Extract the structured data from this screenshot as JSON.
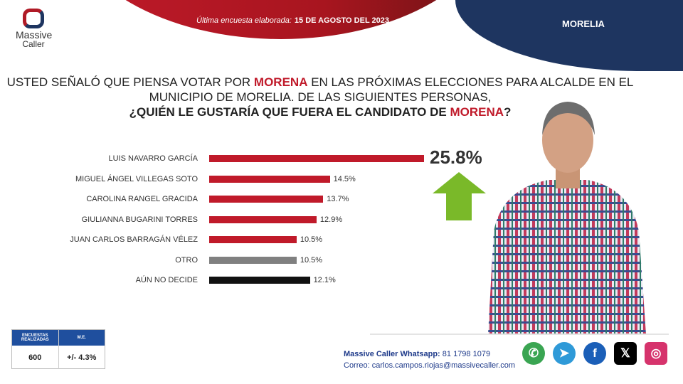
{
  "header": {
    "date_label": "Última encuesta elaborada:",
    "date_value": "15 DE AGOSTO DEL 2023",
    "city": "MORELIA",
    "logo_line1": "Massive",
    "logo_line2": "Caller"
  },
  "question": {
    "line1_pre": "USTED SEÑALÓ QUE PIENSA VOTAR POR ",
    "line1_party": "MORENA",
    "line1_post": " EN LAS PRÓXIMAS ELECCIONES PARA ALCALDE EN EL",
    "line2": "MUNICIPIO DE MORELIA.  DE LAS SIGUIENTES PERSONAS,",
    "line3_pre": "¿QUIÉN LE GUSTARÍA QUE FUERA EL CANDIDATO DE ",
    "line3_party": "MORENA",
    "line3_post": "?"
  },
  "chart_data": {
    "type": "bar",
    "orientation": "horizontal",
    "categories": [
      "LUIS NAVARRO GARCÍA",
      "MIGUEL ÁNGEL VILLEGAS SOTO",
      "CAROLINA RANGEL GRACIDA",
      "GIULIANNA BUGARINI TORRES",
      "JUAN CARLOS BARRAGÁN VÉLEZ",
      "OTRO",
      "AÚN NO DECIDE"
    ],
    "values": [
      25.8,
      14.5,
      13.7,
      12.9,
      10.5,
      10.5,
      12.1
    ],
    "labels": [
      "25.8%",
      "14.5%",
      "13.7%",
      "12.9%",
      "10.5%",
      "10.5%",
      "12.1%"
    ],
    "colors": [
      "#c01a2a",
      "#c01a2a",
      "#c01a2a",
      "#c01a2a",
      "#c01a2a",
      "#808080",
      "#111111"
    ],
    "unit": "%"
  },
  "stats": {
    "h1": "ENCUESTAS REALIZADAS",
    "h2": "M.E.",
    "v1": "600",
    "v2": "+/- 4.3%"
  },
  "contact": {
    "wa_label": "Massive Caller Whatsapp:",
    "wa_number": "81 1798 1079",
    "mail_label": "Correo:",
    "mail": "carlos.campos.riojas@massivecaller.com"
  },
  "social": [
    {
      "icon": "whatsapp-icon",
      "glyph": "✆",
      "color": "#3aa552"
    },
    {
      "icon": "telegram-icon",
      "glyph": "➤",
      "color": "#2f9ad8"
    },
    {
      "icon": "facebook-icon",
      "glyph": "f",
      "color": "#1b5fb8"
    },
    {
      "icon": "x-icon",
      "glyph": "𝕏",
      "color": "#000000"
    },
    {
      "icon": "instagram-icon",
      "glyph": "◎",
      "color": "#d6336c"
    }
  ]
}
